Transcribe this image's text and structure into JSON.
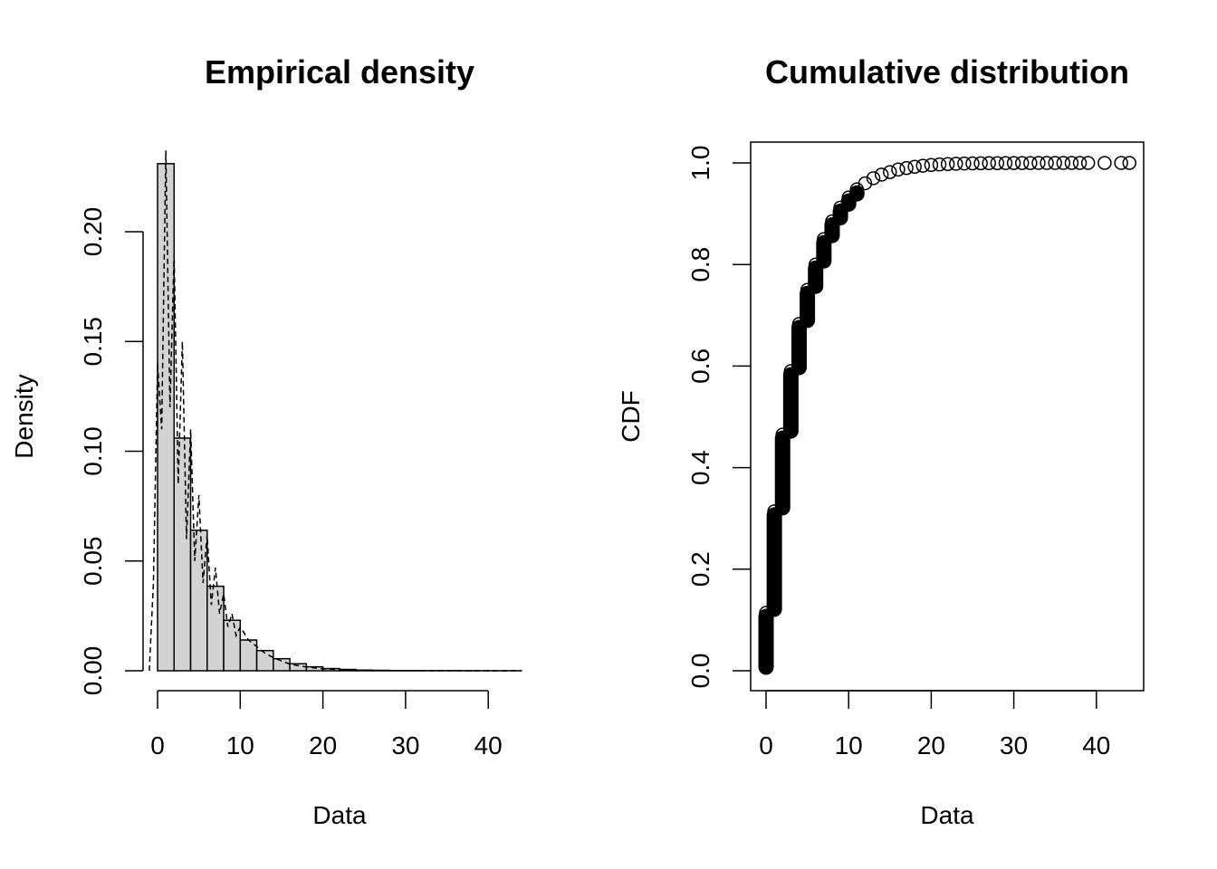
{
  "chart_data": [
    {
      "type": "bar",
      "title": "Empirical density",
      "xlabel": "Data",
      "ylabel": "Density",
      "xlim": [
        -1.8,
        44.5
      ],
      "ylim": [
        0,
        0.24
      ],
      "xticks": [
        "0",
        "10",
        "20",
        "30",
        "40"
      ],
      "xtick_values": [
        0,
        10,
        20,
        30,
        40
      ],
      "yticks": [
        "0.00",
        "0.05",
        "0.10",
        "0.15",
        "0.20"
      ],
      "ytick_values": [
        0,
        0.05,
        0.1,
        0.15,
        0.2
      ],
      "bin_width": 2,
      "bin_starts": [
        0,
        2,
        4,
        6,
        8,
        10,
        12,
        14,
        16,
        18,
        20,
        22,
        24,
        26,
        28,
        30,
        32,
        34,
        36,
        38,
        40,
        42
      ],
      "values": [
        0.231,
        0.106,
        0.064,
        0.0385,
        0.023,
        0.014,
        0.0092,
        0.0055,
        0.0032,
        0.0018,
        0.001,
        0.0006,
        0.0003,
        0.0002,
        0.0001,
        0.0001,
        5e-05,
        5e-05,
        3e-05,
        3e-05,
        2e-05,
        2e-05
      ],
      "bar_color": "#d3d3d3",
      "density_curve": {
        "style": "dashed",
        "x": [
          -1,
          -0.5,
          0,
          0.5,
          1,
          1.5,
          2,
          2.5,
          3,
          3.5,
          4,
          4.5,
          5,
          5.5,
          6,
          6.5,
          7,
          7.5,
          8,
          8.5,
          9,
          9.5,
          10,
          11,
          12,
          13,
          14,
          16,
          18,
          20,
          25,
          30,
          44
        ],
        "y": [
          0,
          0.04,
          0.14,
          0.11,
          0.237,
          0.12,
          0.19,
          0.085,
          0.15,
          0.06,
          0.11,
          0.05,
          0.08,
          0.04,
          0.062,
          0.03,
          0.047,
          0.026,
          0.035,
          0.02,
          0.026,
          0.016,
          0.02,
          0.014,
          0.011,
          0.008,
          0.006,
          0.003,
          0.0017,
          0.0009,
          0.0002,
          5e-05,
          0
        ]
      }
    },
    {
      "type": "scatter",
      "title": "Cumulative distribution",
      "xlabel": "Data",
      "ylabel": "CDF",
      "xlim": [
        -1.8,
        45.8
      ],
      "ylim": [
        -0.04,
        1.04
      ],
      "xticks": [
        "0",
        "10",
        "20",
        "30",
        "40"
      ],
      "xtick_values": [
        0,
        10,
        20,
        30,
        40
      ],
      "yticks": [
        "0.0",
        "0.2",
        "0.4",
        "0.6",
        "0.8",
        "1.0"
      ],
      "ytick_values": [
        0,
        0.2,
        0.4,
        0.6,
        0.8,
        1.0
      ],
      "x": [
        0,
        1,
        2,
        3,
        4,
        5,
        6,
        7,
        8,
        9,
        10,
        11,
        12,
        13,
        14,
        15,
        16,
        17,
        18,
        19,
        20,
        21,
        22,
        23,
        24,
        25,
        26,
        27,
        28,
        29,
        30,
        31,
        32,
        33,
        34,
        35,
        36,
        37,
        38,
        39,
        41,
        43,
        44
      ],
      "y": [
        0.114,
        0.314,
        0.465,
        0.59,
        0.683,
        0.75,
        0.8,
        0.85,
        0.885,
        0.912,
        0.932,
        0.948,
        0.96,
        0.97,
        0.977,
        0.982,
        0.987,
        0.99,
        0.9925,
        0.9945,
        0.996,
        0.997,
        0.9978,
        0.9984,
        0.9988,
        0.9991,
        0.9993,
        0.9995,
        0.9996,
        0.9997,
        0.99975,
        0.9998,
        0.99985,
        0.9999,
        0.99992,
        0.99994,
        0.99996,
        0.99997,
        0.99998,
        0.99999,
        1.0,
        1.0,
        1.0
      ],
      "marker": "open-circle"
    }
  ]
}
